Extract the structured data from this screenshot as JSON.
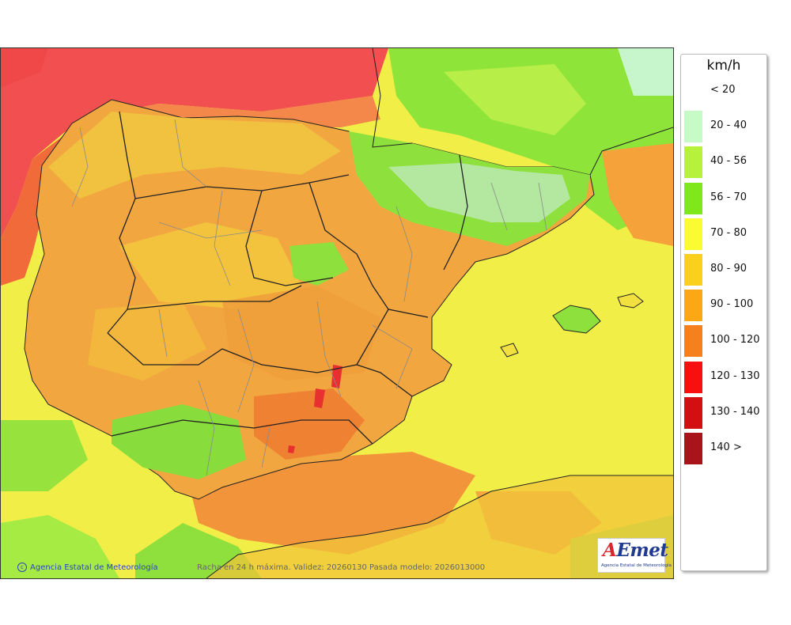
{
  "legend": {
    "unit": "km/h",
    "items": [
      {
        "label": "< 20",
        "color": null
      },
      {
        "label": "20 - 40",
        "color": "#c6fbc6"
      },
      {
        "label": "40 - 56",
        "color": "#b6f23c"
      },
      {
        "label": "56 - 70",
        "color": "#7fe81a"
      },
      {
        "label": "70 - 80",
        "color": "#fbfb32"
      },
      {
        "label": "80 - 90",
        "color": "#fbd01c"
      },
      {
        "label": "90 - 100",
        "color": "#fba814"
      },
      {
        "label": "100 - 120",
        "color": "#f5801e"
      },
      {
        "label": "120 - 130",
        "color": "#f81010"
      },
      {
        "label": "130 - 140",
        "color": "#d40f12"
      },
      {
        "label": "140 >",
        "color": "#a8141a"
      }
    ]
  },
  "footer": {
    "attribution": "Agencia Estatal de Meteorología",
    "caption": "Racha en 24 h máxima. Validez: 20260130 Pasada modelo: 2026013000"
  },
  "logo": {
    "wordmark_a": "A",
    "wordmark_rest": "Emet",
    "subtitle": "Agencia Estatal de Meteorología"
  },
  "map_colors": {
    "sea_base": "#f0ec3c",
    "land_base": "#f0a43c",
    "border": "#222222",
    "province_border": "#8a8a8a"
  }
}
